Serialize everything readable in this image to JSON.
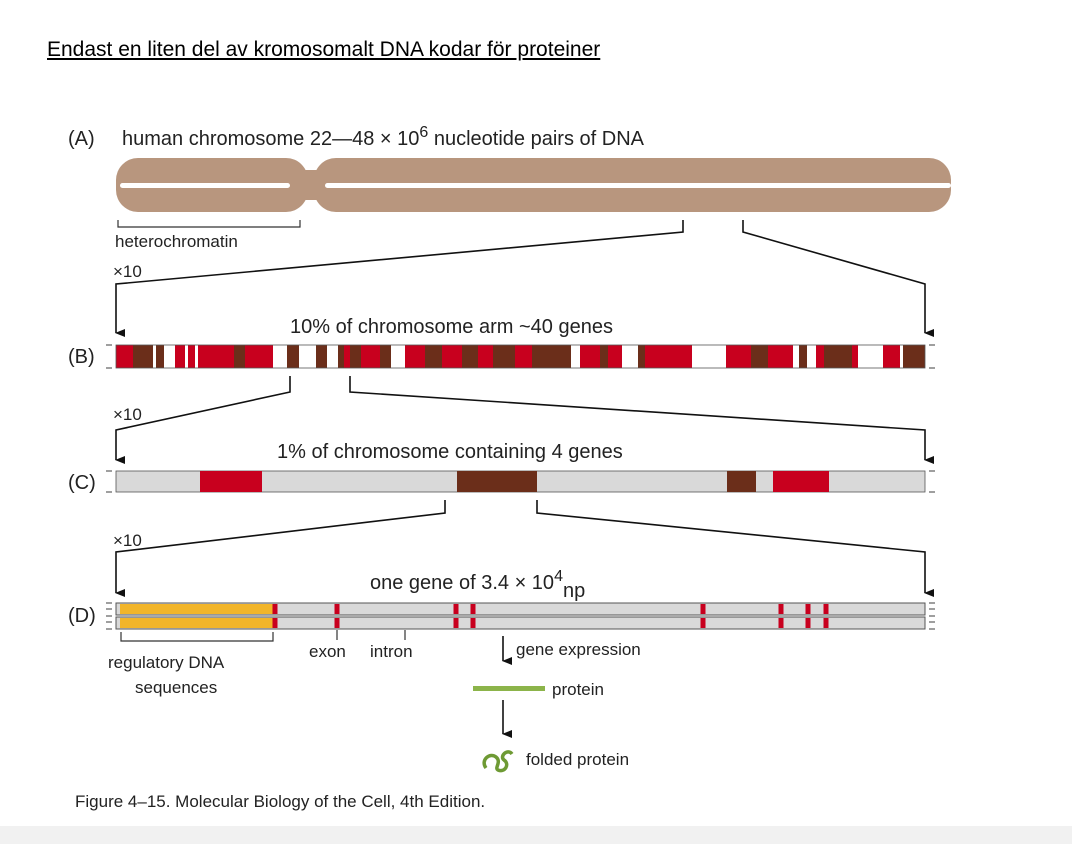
{
  "title": "Endast en liten del av kromosomalt DNA kodar för proteiner",
  "panel_a": {
    "letter": "(A)",
    "label_main": "human chromosome 22—48 × 10",
    "label_sup": "6",
    "label_tail": " nucleotide pairs of DNA",
    "heterochromatin": "heterochromatin",
    "zoom": "×10"
  },
  "panel_b": {
    "letter": "(B)",
    "label": "10% of chromosome arm ~40 genes",
    "zoom": "×10"
  },
  "panel_c": {
    "letter": "(C)",
    "label": "1% of chromosome containing 4 genes",
    "zoom": "×10"
  },
  "panel_d": {
    "letter": "(D)",
    "label_main": "one gene of 3.4 × 10",
    "label_sup": "4",
    "label_sub": "np",
    "regulatory_1": "regulatory DNA",
    "regulatory_2": "sequences",
    "exon": "exon",
    "intron": "intron",
    "gene_expression": "gene expression",
    "protein": "protein",
    "folded_protein": "folded protein"
  },
  "caption": "Figure 4–15. Molecular Biology of the Cell, 4th Edition.",
  "colors": {
    "chromosome": "#b8967e",
    "gene_red": "#c8001e",
    "gene_brown": "#6b2e1a",
    "dna_gray": "#d9d9d9",
    "regulatory_yellow": "#f2b52a",
    "protein_green": "#8cb44a"
  }
}
